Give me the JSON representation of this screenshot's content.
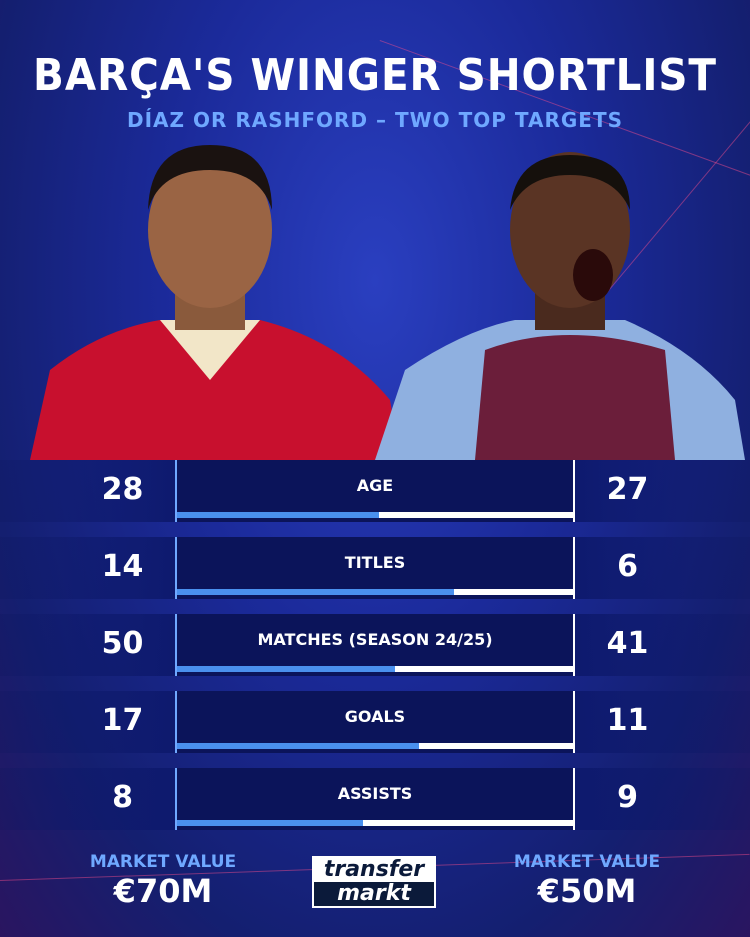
{
  "header": {
    "title": "BARÇA'S WINGER SHORTLIST",
    "subtitle": "DÍAZ OR RASHFORD – TWO TOP TARGETS"
  },
  "players": [
    {
      "kit_color": "#c8102e"
    },
    {
      "kit_color": "#8fb0e0"
    }
  ],
  "stats": [
    {
      "label": "AGE",
      "left": "28",
      "right": "27",
      "left_share": 0.51
    },
    {
      "label": "TITLES",
      "left": "14",
      "right": "6",
      "left_share": 0.7
    },
    {
      "label": "MATCHES (SEASON 24/25)",
      "left": "50",
      "right": "41",
      "left_share": 0.55
    },
    {
      "label": "GOALS",
      "left": "17",
      "right": "11",
      "left_share": 0.61
    },
    {
      "label": "ASSISTS",
      "left": "8",
      "right": "9",
      "left_share": 0.47
    }
  ],
  "footer": {
    "left": {
      "label": "MARKET VALUE",
      "value": "€70M"
    },
    "right": {
      "label": "MARKET VALUE",
      "value": "€50M"
    },
    "logo": {
      "line1": "transfer",
      "line2": "markt"
    }
  },
  "colors": {
    "accent": "#6fa8ff",
    "bar_fill": "#4a90ee",
    "panel": "#0b145a"
  }
}
